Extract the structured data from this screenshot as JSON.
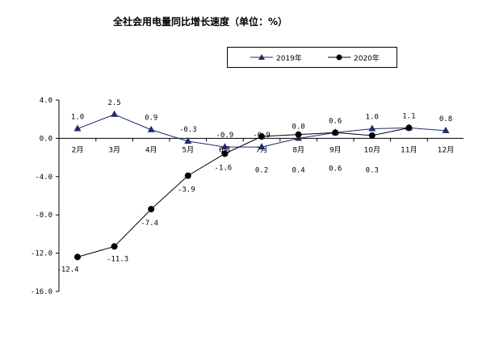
{
  "chart_data": {
    "type": "line",
    "title": "全社会用电量同比增长速度（单位：%）",
    "categories": [
      "2月",
      "3月",
      "4月",
      "5月",
      "6月",
      "7月",
      "8月",
      "9月",
      "10月",
      "11月",
      "12月"
    ],
    "y_ticks": [
      "4.0",
      "0.0",
      "-4.0",
      "-8.0",
      "-12.0",
      "-16.0"
    ],
    "ylim": [
      -16,
      4
    ],
    "grid": false,
    "legend_position": "top-right",
    "series": [
      {
        "name": "2019年",
        "marker": "triangle",
        "color": "#1f2a6b",
        "values": [
          1.0,
          2.5,
          0.9,
          -0.3,
          -0.9,
          -0.9,
          0.0,
          0.6,
          1.0,
          1.1,
          0.8
        ],
        "labels": [
          "1.0",
          "2.5",
          "0.9",
          "-0.3",
          "-0.9",
          "-0.9",
          "0.0",
          "0.6",
          "1.0",
          "1.1",
          "0.8"
        ]
      },
      {
        "name": "2020年",
        "marker": "circle",
        "color": "#000000",
        "values": [
          -12.4,
          -11.3,
          -7.4,
          -3.9,
          -1.6,
          0.2,
          0.4,
          0.6,
          0.3,
          1.1,
          null
        ],
        "labels": [
          "-12.4",
          "-11.3",
          "-7.4",
          "-3.9",
          "-1.6",
          "0.2",
          "0.4",
          "0.6",
          "0.3",
          "",
          ""
        ]
      }
    ]
  }
}
